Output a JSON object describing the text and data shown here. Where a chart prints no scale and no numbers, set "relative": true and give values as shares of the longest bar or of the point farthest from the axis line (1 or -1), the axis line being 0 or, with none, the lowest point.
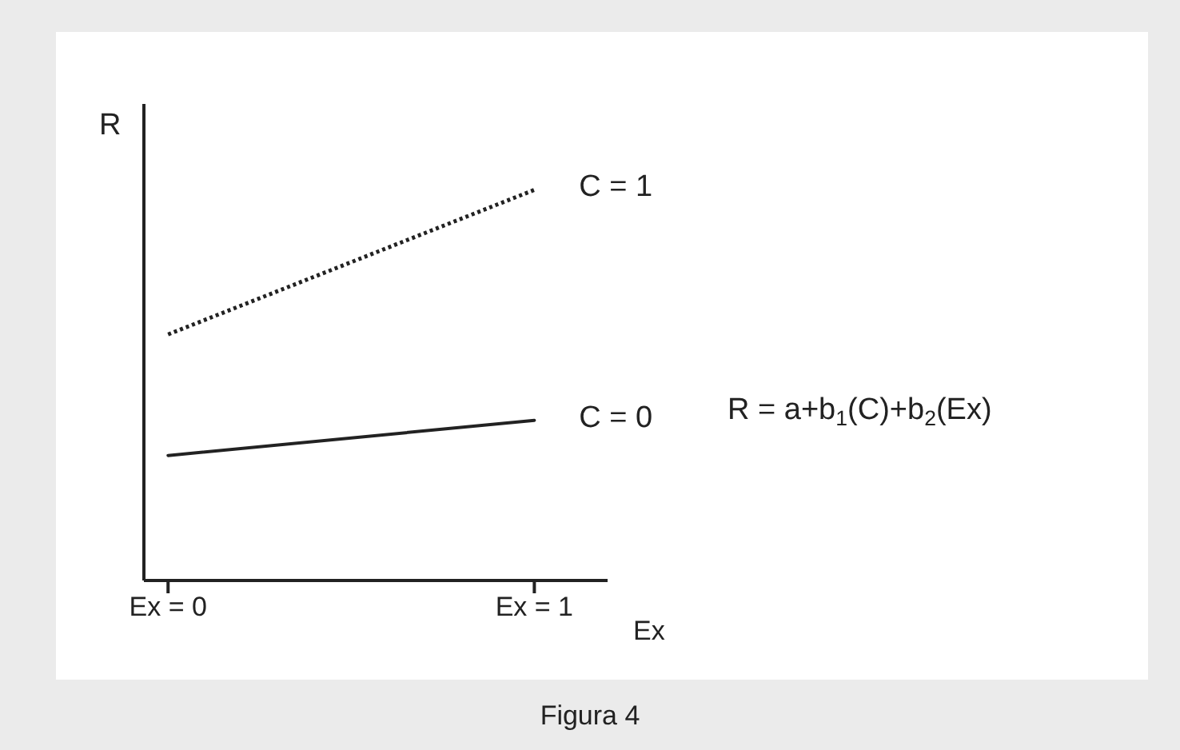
{
  "chart_data": {
    "type": "line",
    "relative": true,
    "categories": [
      "Ex = 0",
      "Ex = 1"
    ],
    "xlabel": "Ex",
    "ylabel": "R",
    "marker": "none",
    "legend": false,
    "grid": false,
    "series": [
      {
        "name": "C = 1",
        "color": "#222222",
        "values": [
          0.63,
          1
        ],
        "line_style": "dotted"
      },
      {
        "name": "C = 0",
        "color": "#222222",
        "values": [
          0.32,
          0.41
        ],
        "line_style": "solid"
      }
    ],
    "annotations": [
      "R = a+b$_{1}$(C)+b$_{2}$(Ex)",
      "Figura 4"
    ]
  }
}
